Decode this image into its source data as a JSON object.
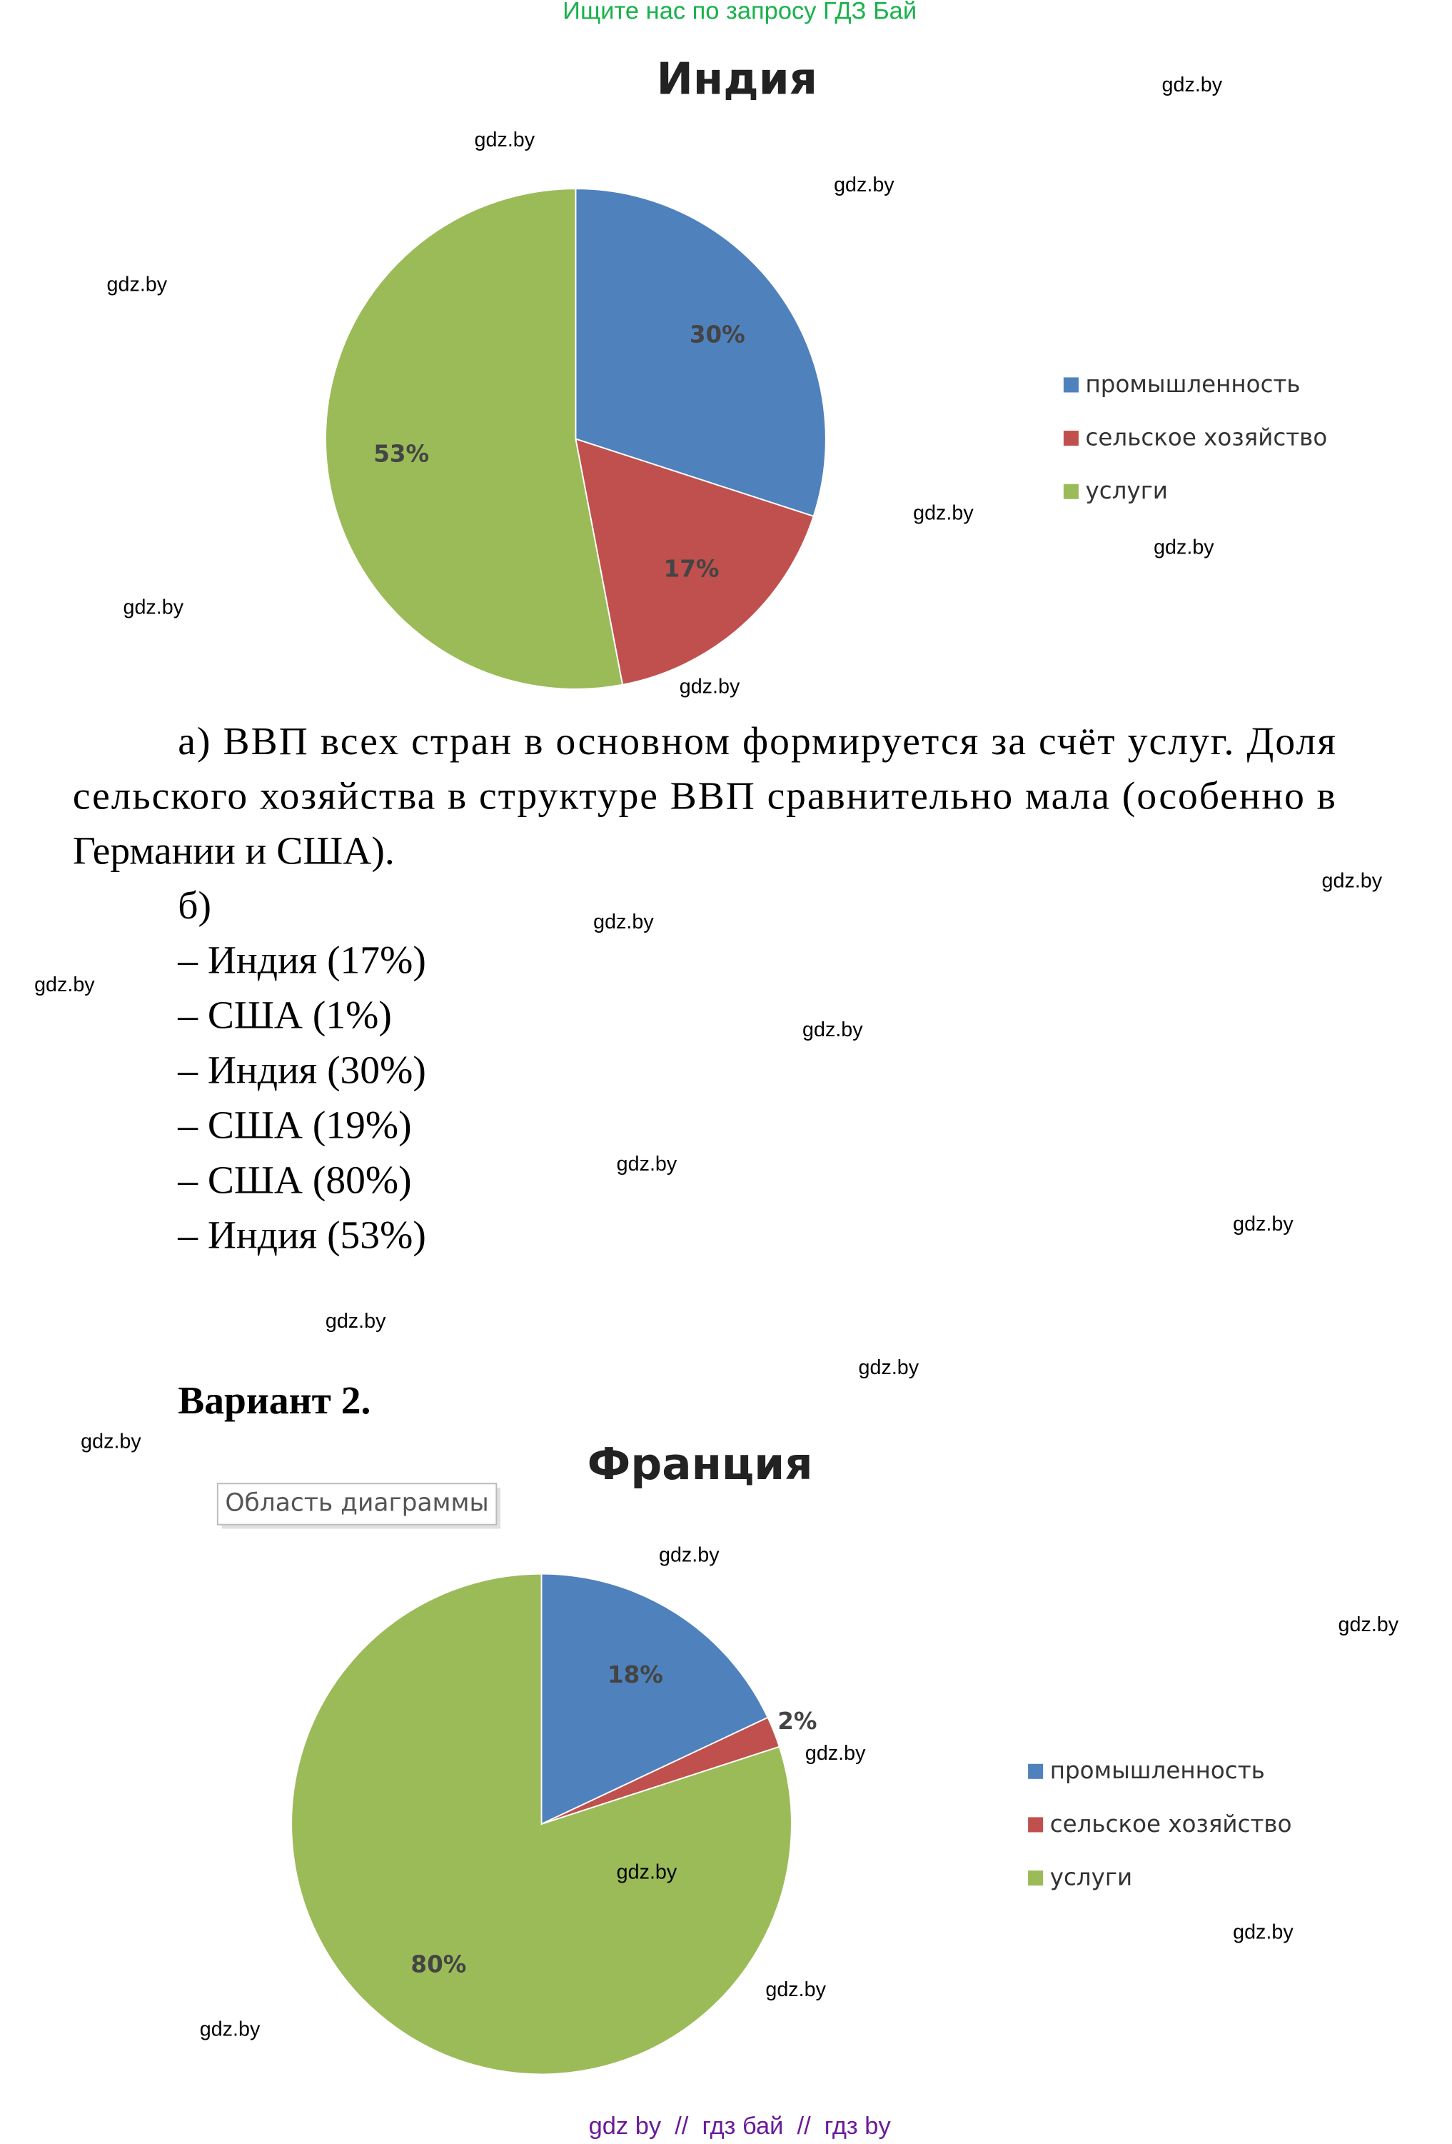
{
  "header": "Ищите нас по запросу ГДЗ Бай",
  "chart_data": [
    {
      "type": "pie",
      "title": "Индия",
      "categories": [
        "промышленность",
        "сельское хозяйство",
        "услуги"
      ],
      "values": [
        30,
        17,
        53
      ],
      "value_labels": [
        "30%",
        "17%",
        "53%"
      ],
      "colors": [
        "#4f81bd",
        "#c0504d",
        "#9bbb59"
      ],
      "legend": "right"
    },
    {
      "type": "pie",
      "title": "Франция",
      "categories": [
        "промышленность",
        "сельское хозяйство",
        "услуги"
      ],
      "values": [
        18,
        2,
        80
      ],
      "value_labels": [
        "18%",
        "2%",
        "80%"
      ],
      "colors": [
        "#4f81bd",
        "#c0504d",
        "#9bbb59"
      ],
      "legend": "right"
    }
  ],
  "paragraph_a": [
    "а) ВВП всех стран в основном формируется за счёт услуг. Доля",
    "сельского хозяйства в структуре ВВП сравнительно мала (особенно в",
    "Германии и США)."
  ],
  "list_b": {
    "label": "б)",
    "items": [
      "– Индия (17%)",
      "– США (1%)",
      "– Индия (30%)",
      "– США (19%)",
      "– США (80%)",
      "– Индия (53%)"
    ]
  },
  "variant": "Вариант 2.",
  "tooltip": "Область диаграммы",
  "watermarks": [
    "gdz.by",
    "gdz.by",
    "gdz.by",
    "gdz.by",
    "gdz.by",
    "gdz.by",
    "gdz.by",
    "gdz.by",
    "gdz.by",
    "gdz.by",
    "gdz.by",
    "gdz.by",
    "gdz.by",
    "gdz.by",
    "gdz.by",
    "gdz.by",
    "gdz.by",
    "gdz.by",
    "gdz.by",
    "gdz.by",
    "gdz.by",
    "gdz.by",
    "gdz.by",
    "gdz.by"
  ],
  "footer": "gdz by  //  гдз бай  //  гдз by"
}
